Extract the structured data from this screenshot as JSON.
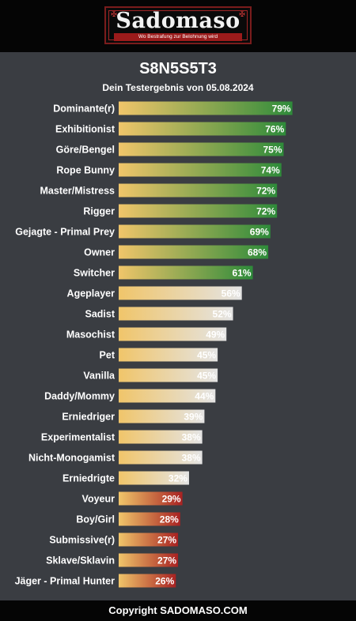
{
  "header": {
    "logo_text": "Sadomaso",
    "logo_tagline": "Wo Bestrafung zur Belohnung wird"
  },
  "result": {
    "title": "S8N5S5T3",
    "subtitle": "Dein Testergebnis von 05.08.2024"
  },
  "colors": {
    "background": "#3a3d42",
    "bar_start": "#f0c56a",
    "green": "#2e8b3a",
    "neutral": "#e4e4e4",
    "red": "#a82222"
  },
  "chart_data": {
    "type": "bar",
    "orientation": "horizontal",
    "xlim": [
      0,
      100
    ],
    "categories": [
      "Dominante(r)",
      "Exhibitionist",
      "Göre/Bengel",
      "Rope Bunny",
      "Master/Mistress",
      "Rigger",
      "Gejagte - Primal Prey",
      "Owner",
      "Switcher",
      "Ageplayer",
      "Sadist",
      "Masochist",
      "Pet",
      "Vanilla",
      "Daddy/Mommy",
      "Erniedriger",
      "Experimentalist",
      "Nicht-Monogamist",
      "Erniedrigte",
      "Voyeur",
      "Boy/Girl",
      "Submissive(r)",
      "Sklave/Sklavin",
      "Jäger - Primal Hunter"
    ],
    "values": [
      79,
      76,
      75,
      74,
      72,
      72,
      69,
      68,
      61,
      56,
      52,
      49,
      45,
      45,
      44,
      39,
      38,
      38,
      32,
      29,
      28,
      27,
      27,
      26
    ],
    "value_labels": [
      "79%",
      "76%",
      "75%",
      "74%",
      "72%",
      "72%",
      "69%",
      "68%",
      "61%",
      "56%",
      "52%",
      "49%",
      "45%",
      "45%",
      "44%",
      "39%",
      "38%",
      "38%",
      "32%",
      "29%",
      "28%",
      "27%",
      "27%",
      "26%"
    ],
    "bar_tone": [
      "green",
      "green",
      "green",
      "green",
      "green",
      "green",
      "green",
      "green",
      "green",
      "neutral",
      "neutral",
      "neutral",
      "neutral",
      "neutral",
      "neutral",
      "neutral",
      "neutral",
      "neutral",
      "neutral",
      "red",
      "red",
      "red",
      "red",
      "red"
    ]
  },
  "footer": {
    "copyright": "Copyright SADOMASO.COM"
  }
}
